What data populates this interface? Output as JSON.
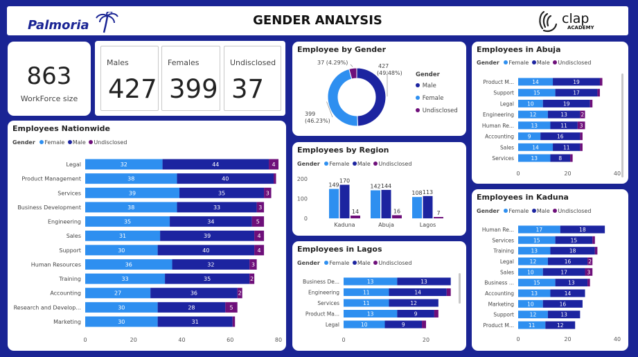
{
  "header": {
    "title": "GENDER ANALYSIS",
    "logo_left": "Palmoria",
    "logo_right": "clap",
    "logo_right_sub": "ACADEMY"
  },
  "workforce": {
    "value": "863",
    "label": "WorkForce size"
  },
  "kpis": [
    {
      "label": "Males",
      "value": "427"
    },
    {
      "label": "Females",
      "value": "399"
    },
    {
      "label": "Undisclosed",
      "value": "37"
    }
  ],
  "colors": {
    "female": "#2e8ff0",
    "male": "#1c24a0",
    "undisclosed": "#6e0f7a",
    "background": "#1a2494"
  },
  "legend": {
    "title": "Gender",
    "female": "Female",
    "male": "Male",
    "undisclosed": "Undisclosed"
  },
  "chart_data": [
    {
      "id": "nationwide",
      "type": "bar",
      "orientation": "horizontal-stacked",
      "title": "Employees Nationwide",
      "categories": [
        "Legal",
        "Product Management",
        "Services",
        "Business Development",
        "Engineering",
        "Sales",
        "Support",
        "Human Resources",
        "Training",
        "Accounting",
        "Research and Develop...",
        "Marketing"
      ],
      "series": [
        {
          "name": "Female",
          "values": [
            32,
            38,
            39,
            38,
            35,
            31,
            30,
            36,
            33,
            27,
            30,
            30
          ]
        },
        {
          "name": "Male",
          "values": [
            44,
            40,
            35,
            33,
            34,
            39,
            40,
            32,
            35,
            36,
            28,
            31
          ]
        },
        {
          "name": "Undisclosed",
          "values": [
            4,
            1,
            3,
            3,
            5,
            4,
            4,
            3,
            2,
            2,
            5,
            1
          ]
        }
      ],
      "xlim": [
        0,
        80
      ],
      "xticks": [
        "0",
        "20",
        "40",
        "60",
        "80"
      ]
    },
    {
      "id": "gender",
      "type": "pie",
      "title": "Employee by Gender",
      "categories": [
        "Male",
        "Female",
        "Undisclosed"
      ],
      "values": [
        427,
        399,
        37
      ],
      "labels": [
        "427 (49.48%)",
        "399 (46.23%)",
        "37 (4.29%)"
      ]
    },
    {
      "id": "region",
      "type": "bar",
      "orientation": "vertical-grouped",
      "title": "Employees by Region",
      "categories": [
        "Kaduna",
        "Abuja",
        "Lagos"
      ],
      "series": [
        {
          "name": "Female",
          "values": [
            149,
            142,
            108
          ]
        },
        {
          "name": "Male",
          "values": [
            170,
            144,
            113
          ]
        },
        {
          "name": "Undisclosed",
          "values": [
            14,
            16,
            7
          ]
        }
      ],
      "ylim": [
        0,
        200
      ],
      "yticks": [
        "0",
        "100",
        "200"
      ]
    },
    {
      "id": "lagos",
      "type": "bar",
      "orientation": "horizontal-stacked",
      "title": "Employees in Lagos",
      "categories": [
        "Business De...",
        "Engineering",
        "Services",
        "Product Ma...",
        "Legal"
      ],
      "series": [
        {
          "name": "Female",
          "values": [
            13,
            11,
            11,
            13,
            10
          ]
        },
        {
          "name": "Male",
          "values": [
            13,
            14,
            12,
            9,
            9
          ]
        },
        {
          "name": "Undisclosed",
          "values": [
            0,
            1,
            0,
            1,
            1
          ]
        }
      ],
      "xlim": [
        0,
        30
      ],
      "xticks": [
        "0",
        "20"
      ]
    },
    {
      "id": "abuja",
      "type": "bar",
      "orientation": "horizontal-stacked",
      "title": "Employees in Abuja",
      "categories": [
        "Product M...",
        "Support",
        "Legal",
        "Engineering",
        "Human Re...",
        "Accounting",
        "Sales",
        "Services"
      ],
      "series": [
        {
          "name": "Female",
          "values": [
            14,
            15,
            10,
            12,
            13,
            9,
            14,
            13
          ]
        },
        {
          "name": "Male",
          "values": [
            19,
            17,
            19,
            13,
            11,
            16,
            11,
            8
          ]
        },
        {
          "name": "Undisclosed",
          "values": [
            1,
            1,
            1,
            2,
            3,
            1,
            1,
            1
          ]
        }
      ],
      "xlim": [
        0,
        40
      ],
      "xticks": [
        "0",
        "20",
        "40"
      ]
    },
    {
      "id": "kaduna",
      "type": "bar",
      "orientation": "horizontal-stacked",
      "title": "Employees in Kaduna",
      "categories": [
        "Human Re...",
        "Services",
        "Training",
        "Legal",
        "Sales",
        "Business ...",
        "Accounting",
        "Marketing",
        "Support",
        "Product M..."
      ],
      "series": [
        {
          "name": "Female",
          "values": [
            17,
            15,
            13,
            12,
            10,
            15,
            13,
            10,
            12,
            11
          ]
        },
        {
          "name": "Male",
          "values": [
            18,
            15,
            18,
            16,
            17,
            13,
            14,
            16,
            13,
            12
          ]
        },
        {
          "name": "Undisclosed",
          "values": [
            0,
            1,
            1,
            2,
            3,
            1,
            0,
            0,
            0,
            0
          ]
        }
      ],
      "xlim": [
        0,
        40
      ],
      "xticks": [
        "0",
        "20",
        "40"
      ]
    }
  ]
}
